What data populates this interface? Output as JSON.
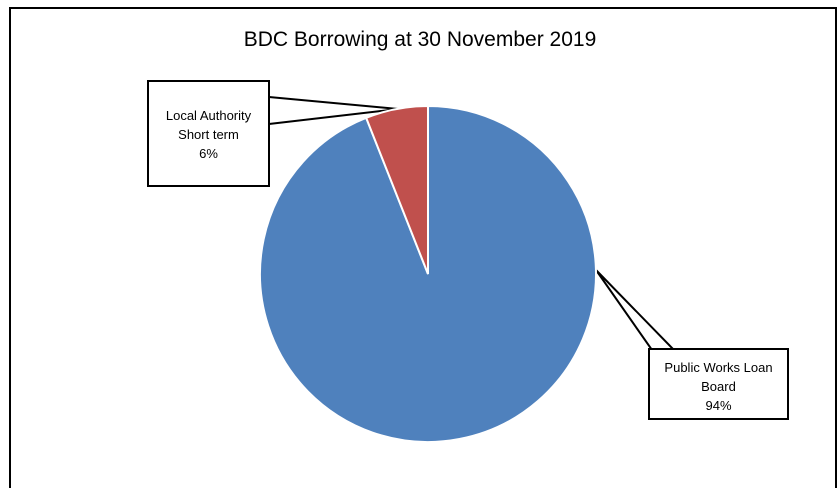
{
  "chart_data": {
    "type": "pie",
    "title": "BDC Borrowing at 30 November  2019",
    "slices": [
      {
        "label_line1": "Public Works Loan",
        "label_line2": "Board",
        "percent_label": "94%",
        "value": 94,
        "color": "#4f81bd"
      },
      {
        "label_line1": "Local Authority",
        "label_line2": "Short term",
        "percent_label": "6%",
        "value": 6,
        "color": "#c0504d"
      }
    ],
    "start_angle": "12 o'clock",
    "direction": "clockwise",
    "legend": "none",
    "data_labels": "callouts"
  }
}
